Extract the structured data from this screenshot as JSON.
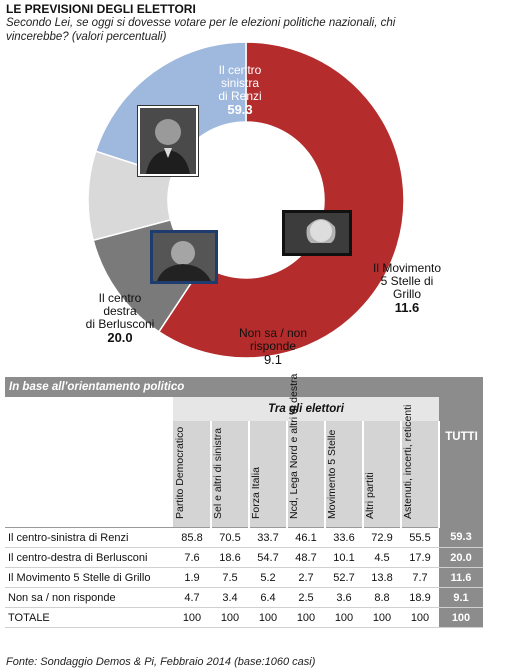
{
  "title": "LE PREVISIONI DEGLI ELETTORI",
  "subtitle": "Secondo Lei, se oggi si dovesse votare per le elezioni politiche nazionali, chi vincerebbe? (valori percentuali)",
  "chart_data": [
    {
      "type": "pie",
      "variant": "donut",
      "slices": [
        {
          "label": "Il centro sinistra di Renzi",
          "value": 59.3,
          "color": "#b42c2c"
        },
        {
          "label": "Il Movimento 5 Stelle di Grillo",
          "value": 11.6,
          "color": "#7a7a7a"
        },
        {
          "label": "Non sa / non risponde",
          "value": 9.1,
          "color": "#d9d9d9"
        },
        {
          "label": "Il centro destra di Berlusconi",
          "value": 20.0,
          "color": "#9fb8de"
        }
      ]
    },
    {
      "type": "table",
      "header": "In base all'orientamento politico",
      "group_label": "Tra gli elettori",
      "columns": [
        "Partito Democratico",
        "Sel e altri di sinistra",
        "Forza Italia",
        "Ncd, Lega Nord e altri di destra",
        "Movimento 5 Stelle",
        "Altri partiti",
        "Astenuti, incerti, reticenti"
      ],
      "total_column": "TUTTI",
      "rows": [
        {
          "label": "Il centro-sinistra di Renzi",
          "values": [
            "85.8",
            "70.5",
            "33.7",
            "46.1",
            "33.6",
            "72.9",
            "55.5"
          ],
          "total": "59.3"
        },
        {
          "label": "Il centro-destra di Berlusconi",
          "values": [
            "7.6",
            "18.6",
            "54.7",
            "48.7",
            "10.1",
            "4.5",
            "17.9"
          ],
          "total": "20.0"
        },
        {
          "label": "Il Movimento 5 Stelle di Grillo",
          "values": [
            "1.9",
            "7.5",
            "5.2",
            "2.7",
            "52.7",
            "13.8",
            "7.7"
          ],
          "total": "11.6"
        },
        {
          "label": "Non sa / non risponde",
          "values": [
            "4.7",
            "3.4",
            "6.4",
            "2.5",
            "3.6",
            "8.8",
            "18.9"
          ],
          "total": "9.1"
        },
        {
          "label": "TOTALE",
          "values": [
            "100",
            "100",
            "100",
            "100",
            "100",
            "100",
            "100"
          ],
          "total": "100"
        }
      ]
    }
  ],
  "labels": {
    "red": {
      "line1": "Il centro",
      "line2": "sinistra",
      "line3": "di Renzi",
      "value": "59.3"
    },
    "grey": {
      "line1": "Il Movimento",
      "line2": "5 Stelle di",
      "line3": "Grillo",
      "value": "11.6"
    },
    "light": {
      "line1": "Non sa / non",
      "line2": "risponde",
      "value": "9.1"
    },
    "blue": {
      "line1": "Il centro",
      "line2": "destra",
      "line3": "di Berlusconi",
      "value": "20.0"
    }
  },
  "footer": "Fonte: Sondaggio Demos & Pi, Febbraio 2014 (base:1060 casi)"
}
